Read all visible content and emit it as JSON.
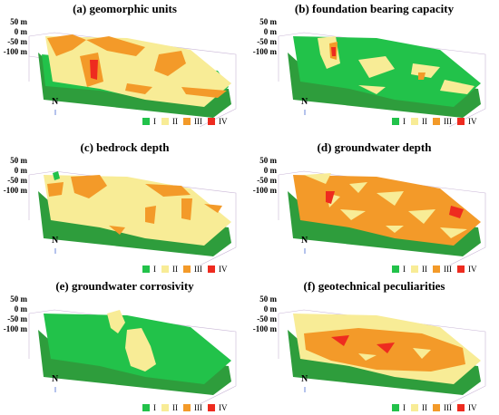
{
  "colors": {
    "I": "#22c24a",
    "II": "#f8ec96",
    "III": "#f39a29",
    "IV": "#ee2b1f",
    "darkgreen": "#2e9d3c",
    "bbox": "#c9b6d6"
  },
  "north_label": "N",
  "legend_labels": [
    "I",
    "II",
    "III",
    "IV"
  ],
  "panels": [
    {
      "title": "(a) geomorphic units",
      "axis_labels": [
        "50 m",
        "0 m",
        "-50 m",
        "-100 m"
      ]
    },
    {
      "title": "(b) foundation bearing capacity",
      "axis_labels": [
        "50 m",
        "0 m",
        "-50 m",
        "-100 m"
      ]
    },
    {
      "title": "(c) bedrock depth",
      "axis_labels": [
        "50 m",
        "0 m",
        "-50 m",
        "-100 m"
      ]
    },
    {
      "title": "(d) groundwater depth",
      "axis_labels": [
        "50 m",
        "0 m",
        "-50 m",
        "-100 m"
      ]
    },
    {
      "title": "(e) groundwater corrosivity",
      "axis_labels": [
        "50 m",
        "0 m",
        "-50 m",
        "-100 m"
      ]
    },
    {
      "title": "(f) geotechnical peculiarities",
      "axis_labels": [
        "50 m",
        "0 m",
        "-50 m",
        "-100 m"
      ]
    }
  ]
}
